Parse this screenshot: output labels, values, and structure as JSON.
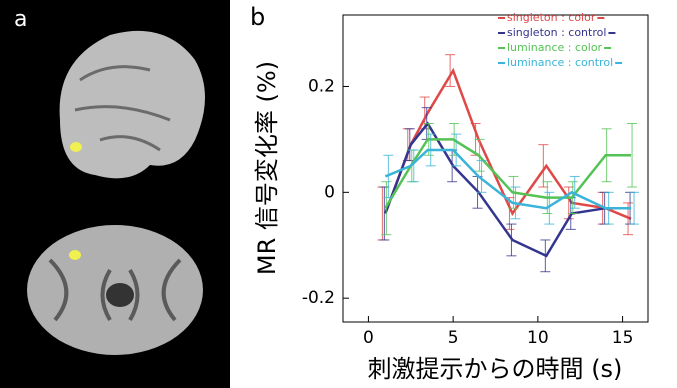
{
  "panels": {
    "a": "a",
    "b": "b"
  },
  "chart_data": {
    "type": "line",
    "x_label": "刺激提示からの時間 (s)",
    "y_label": "MR 信号変化率 (%)",
    "x": [
      1,
      2.5,
      3.5,
      5,
      6.5,
      8.5,
      10.5,
      12,
      14,
      15.5
    ],
    "series": [
      {
        "name": "singleton : color",
        "color": "#e04848",
        "values": [
          -0.04,
          0.09,
          0.15,
          0.23,
          0.1,
          -0.04,
          0.05,
          -0.02,
          -0.03,
          -0.05
        ],
        "errors": [
          0.05,
          0.03,
          0.03,
          0.03,
          0.03,
          0.03,
          0.04,
          0.03,
          0.03,
          0.03
        ]
      },
      {
        "name": "singleton : control",
        "color": "#34358f",
        "values": [
          -0.04,
          0.09,
          0.13,
          0.05,
          0.0,
          -0.09,
          -0.12,
          -0.04,
          -0.03,
          -0.03
        ],
        "errors": [
          0.05,
          0.03,
          0.03,
          0.03,
          0.03,
          0.03,
          0.03,
          0.03,
          0.03,
          0.03
        ]
      },
      {
        "name": "luminance : color",
        "color": "#55c255",
        "values": [
          -0.03,
          0.05,
          0.1,
          0.1,
          0.07,
          0.0,
          -0.01,
          -0.01,
          0.07,
          0.07
        ],
        "errors": [
          0.05,
          0.03,
          0.03,
          0.03,
          0.03,
          0.03,
          0.03,
          0.03,
          0.05,
          0.06
        ]
      },
      {
        "name": "luminance : control",
        "color": "#3ab4d8",
        "values": [
          0.03,
          0.05,
          0.08,
          0.08,
          0.03,
          -0.02,
          -0.03,
          0.0,
          -0.03,
          -0.03
        ],
        "errors": [
          0.04,
          0.03,
          0.03,
          0.03,
          0.03,
          0.03,
          0.03,
          0.03,
          0.03,
          0.03
        ]
      }
    ],
    "xlim": [
      -1.5,
      16.5
    ],
    "xticks": [
      0,
      5,
      10,
      15
    ],
    "ylim": [
      -0.245,
      0.335
    ],
    "yticks": [
      -0.2,
      0,
      0.2
    ],
    "legend": "upper right"
  }
}
